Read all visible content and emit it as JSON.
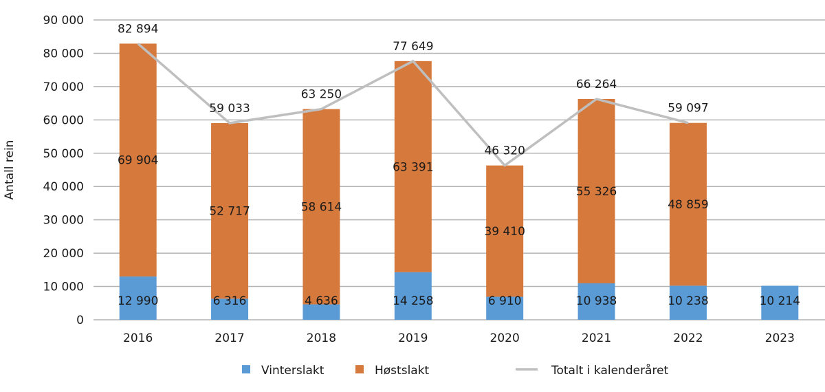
{
  "chart_data": {
    "type": "bar",
    "stacked": true,
    "title": "",
    "xlabel": "",
    "ylabel": "Antall rein",
    "ylim": [
      0,
      90000
    ],
    "yticks": [
      0,
      10000,
      20000,
      30000,
      40000,
      50000,
      60000,
      70000,
      80000,
      90000
    ],
    "ytick_labels": [
      "0",
      "10 000",
      "20 000",
      "30 000",
      "40 000",
      "50 000",
      "60 000",
      "70 000",
      "80 000",
      "90 000"
    ],
    "grid": true,
    "legend_position": "bottom",
    "categories": [
      "2016",
      "2017",
      "2018",
      "2019",
      "2020",
      "2021",
      "2022",
      "2023"
    ],
    "series": [
      {
        "name": "Vinterslakt",
        "kind": "bar",
        "color": "#5b9bd5",
        "values": [
          12990,
          6316,
          4636,
          14258,
          6910,
          10938,
          10238,
          10214
        ],
        "labels": [
          "12 990",
          "6 316",
          "4 636",
          "14 258",
          "6 910",
          "10 938",
          "10 238",
          "10 214"
        ]
      },
      {
        "name": "Høstslakt",
        "kind": "bar",
        "color": "#d5793d",
        "values": [
          69904,
          52717,
          58614,
          63391,
          39410,
          55326,
          48859,
          null
        ],
        "labels": [
          "69 904",
          "52 717",
          "58 614",
          "63 391",
          "39 410",
          "55 326",
          "48 859",
          ""
        ]
      },
      {
        "name": "Totalt i kalenderåret",
        "kind": "line",
        "color": "#bfbfbf",
        "values": [
          82894,
          59033,
          63250,
          77649,
          46320,
          66264,
          59097,
          null
        ],
        "labels": [
          "82 894",
          "59 033",
          "63 250",
          "77 649",
          "46 320",
          "66 264",
          "59 097",
          ""
        ]
      }
    ]
  }
}
